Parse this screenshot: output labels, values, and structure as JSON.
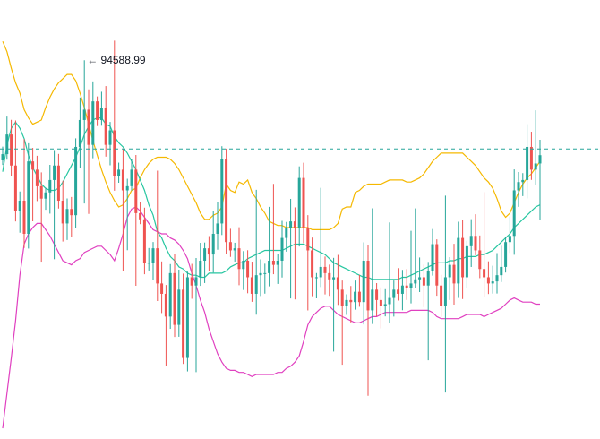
{
  "chart_data": {
    "type": "candlestick",
    "title": "",
    "xlabel": "",
    "ylabel": "",
    "ylim": [
      76500,
      97500
    ],
    "grid": false,
    "colors": {
      "up": "#26a69a",
      "down": "#ef5350",
      "upper_band": "#f5b800",
      "middle_band": "#26c6a0",
      "lower_band": "#e040c0",
      "price_line": "#26a69a"
    },
    "high_marker": {
      "label": "94588.99",
      "value": 94588.99,
      "arrow": "←"
    },
    "current_price_line": {
      "value": 90300,
      "style": "dashed"
    },
    "candles_close": [
      90050,
      91000,
      89500,
      87300,
      87800,
      86200,
      89700,
      89300,
      88500,
      87900,
      88200,
      88800,
      89500,
      87800,
      86700,
      87400,
      87100,
      90400,
      91700,
      92200,
      90500,
      92600,
      91700,
      92300,
      90500,
      91200,
      89000,
      89300,
      88300,
      88500,
      89300,
      87200,
      86900,
      84800,
      84800,
      85500,
      83800,
      83300,
      82200,
      84300,
      81800,
      83500,
      80200,
      84100,
      83700,
      84100,
      84900,
      85500,
      85200,
      86200,
      86700,
      89800,
      85800,
      85400,
      85500,
      84500,
      84900,
      84100,
      83300,
      84200,
      84300,
      84300,
      84900,
      84700,
      84900,
      86000,
      86500,
      86800,
      86500,
      88900,
      86500,
      85400,
      84100,
      84100,
      84600,
      84300,
      84000,
      84100,
      83500,
      82700,
      83000,
      82900,
      83400,
      82900,
      84900,
      82500,
      83500,
      83000,
      82700,
      82800,
      83100,
      83500,
      83300,
      83700,
      83600,
      83800,
      84000,
      84100,
      83700,
      84400,
      85700,
      83700,
      82700,
      84100,
      84700,
      83800,
      86000,
      84100,
      85600,
      86100,
      85400,
      84500,
      84100,
      83800,
      83900,
      84200,
      84600,
      85800,
      86100,
      88300,
      88700,
      88800,
      90400,
      89300,
      89600,
      90000
    ],
    "upper_band": [
      95500,
      95000,
      94200,
      93500,
      93000,
      92200,
      91800,
      91500,
      91600,
      91700,
      92300,
      92800,
      93200,
      93500,
      93700,
      93900,
      93900,
      93600,
      93000,
      92300,
      91500,
      90700,
      90000,
      89300,
      88700,
      88200,
      87800,
      87500,
      87600,
      87900,
      88300,
      88400,
      88900,
      89300,
      89600,
      89800,
      89900,
      89900,
      89900,
      89800,
      89600,
      89300,
      88900,
      88500,
      88100,
      87700,
      87200,
      86900,
      86900,
      87100,
      87200,
      87500,
      88600,
      88300,
      88200,
      88700,
      88600,
      88800,
      88200,
      87900,
      87500,
      87200,
      86800,
      86700,
      86600,
      86600,
      86500,
      86500,
      86500,
      86500,
      86500,
      86500,
      86400,
      86400,
      86400,
      86400,
      86400,
      86500,
      86700,
      87400,
      87500,
      87500,
      88200,
      88300,
      88500,
      88600,
      88600,
      88600,
      88600,
      88700,
      88800,
      88800,
      88800,
      88800,
      88700,
      88700,
      88800,
      88900,
      89100,
      89400,
      89700,
      89900,
      90100,
      90100,
      90100,
      90100,
      90100,
      90100,
      89900,
      89700,
      89500,
      89200,
      88900,
      88700,
      88400,
      87900,
      87300,
      87000,
      87200,
      87700,
      88200,
      88600,
      88900,
      89100,
      89400,
      89700
    ],
    "middle_band": [
      89200,
      90500,
      91300,
      91600,
      91300,
      90800,
      90000,
      89400,
      89000,
      88600,
      88400,
      88300,
      88300,
      88400,
      88700,
      89100,
      89500,
      89900,
      90400,
      91000,
      91400,
      91700,
      91800,
      91800,
      91500,
      91400,
      90900,
      90600,
      90400,
      90100,
      89700,
      89300,
      88800,
      88300,
      87600,
      87100,
      86300,
      86000,
      85500,
      85100,
      84900,
      84600,
      84500,
      84300,
      84200,
      84200,
      84100,
      84100,
      84300,
      84300,
      84300,
      84300,
      84400,
      84600,
      84700,
      84800,
      84800,
      85000,
      85100,
      85200,
      85300,
      85400,
      85400,
      85400,
      85400,
      85400,
      85500,
      85600,
      85700,
      85700,
      85700,
      85600,
      85500,
      85400,
      85300,
      85200,
      85000,
      84800,
      84700,
      84600,
      84500,
      84400,
      84300,
      84200,
      84100,
      84100,
      84000,
      84000,
      84000,
      84000,
      84000,
      84000,
      84000,
      84100,
      84100,
      84200,
      84300,
      84400,
      84500,
      84600,
      84700,
      84800,
      84800,
      84800,
      84900,
      84900,
      85000,
      85000,
      85100,
      85100,
      85100,
      85200,
      85200,
      85300,
      85400,
      85600,
      85800,
      86000,
      86200,
      86500,
      86700,
      86900,
      87100,
      87300,
      87500,
      87600
    ],
    "lower_band": [
      76800,
      78500,
      80200,
      82000,
      84200,
      85700,
      86200,
      86500,
      86700,
      86700,
      86400,
      86100,
      85700,
      85300,
      84900,
      84800,
      84700,
      84900,
      85000,
      85300,
      85400,
      85500,
      85600,
      85600,
      85400,
      85200,
      84900,
      85500,
      86200,
      87000,
      87400,
      87500,
      87300,
      87000,
      86700,
      86400,
      86300,
      86200,
      86200,
      86000,
      85900,
      85700,
      85400,
      85000,
      84300,
      83700,
      83000,
      82400,
      81600,
      81000,
      80400,
      80000,
      79700,
      79600,
      79600,
      79500,
      79500,
      79400,
      79300,
      79400,
      79400,
      79400,
      79400,
      79400,
      79500,
      79500,
      79700,
      79800,
      80000,
      80300,
      81000,
      81800,
      82200,
      82400,
      82600,
      82700,
      82700,
      82500,
      82300,
      82200,
      82100,
      82000,
      81900,
      81900,
      82000,
      82100,
      82200,
      82200,
      82300,
      82400,
      82400,
      82400,
      82400,
      82400,
      82400,
      82500,
      82500,
      82500,
      82500,
      82500,
      82400,
      82200,
      82100,
      82100,
      82100,
      82100,
      82100,
      82200,
      82300,
      82300,
      82300,
      82300,
      82200,
      82300,
      82400,
      82500,
      82600,
      82800,
      83000,
      83100,
      83000,
      82900,
      82900,
      82900,
      82800,
      82800
    ]
  }
}
